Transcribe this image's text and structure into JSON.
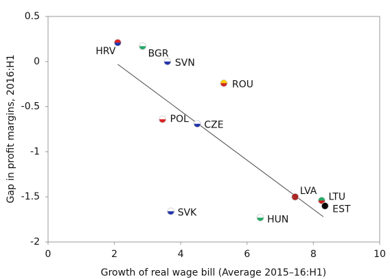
{
  "chart_data": {
    "type": "scatter",
    "x_label": "Growth of real wage bill (Average 2015–16:H1)",
    "y_label": "Gap in profit margins, 2016:H1",
    "labels": [
      "HRV",
      "BGR",
      "SVN",
      "ROU",
      "POL",
      "CZE",
      "LVA",
      "LTU",
      "EST",
      "SVK",
      "HUN"
    ],
    "x": [
      2.1,
      2.85,
      3.6,
      5.3,
      3.45,
      4.5,
      7.45,
      8.25,
      8.35,
      3.7,
      6.4
    ],
    "y": [
      0.21,
      0.17,
      0.0,
      -0.24,
      -0.64,
      -0.69,
      -1.5,
      -1.54,
      -1.6,
      -1.66,
      -1.73
    ],
    "colors": [
      [
        "#d22",
        "#23a"
      ],
      [
        "#fff",
        "#2a6"
      ],
      [
        "#fff",
        "#23a"
      ],
      [
        "#fc0",
        "#c22"
      ],
      [
        "#fff",
        "#d22"
      ],
      [
        "#fff",
        "#23a"
      ],
      [
        "#a22",
        "#a22"
      ],
      [
        "#2a6",
        "#c22"
      ],
      [
        "#000",
        "#000"
      ],
      [
        "#fff",
        "#23a"
      ],
      [
        "#fff",
        "#2a6"
      ]
    ],
    "trendline": {
      "x": [
        2.1,
        8.3
      ],
      "y": [
        -0.03,
        -1.72
      ],
      "color": "#444"
    },
    "xlim": [
      0,
      10
    ],
    "xticks": [
      0,
      2,
      4,
      6,
      8,
      10
    ],
    "ylim": [
      -2,
      0.5
    ],
    "yticks": [
      -2,
      -1.5,
      -1,
      -0.5,
      0,
      0.5
    ],
    "grid": false
  }
}
